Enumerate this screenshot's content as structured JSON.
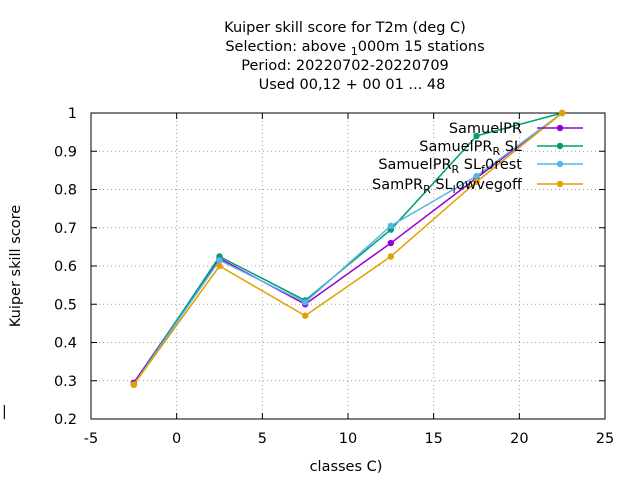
{
  "chart_data": {
    "type": "line",
    "title_lines": [
      "Kuiper skill score  for T2m (deg C)",
      "Selection: above 1000m      15 stations",
      "Period: 20220702-20220709",
      "Used  00,12  + 00 01 ... 48"
    ],
    "xlabel": "classes C)",
    "ylabel": "Kuiper skill score",
    "xlim": [
      -5,
      25
    ],
    "ylim": [
      0.2,
      1.0
    ],
    "xticks": [
      "-5",
      "0",
      "5",
      "10",
      "15",
      "20",
      "25"
    ],
    "yticks": [
      "0.2",
      "0.3",
      "0.4",
      "0.5",
      "0.6",
      "0.7",
      "0.8",
      "0.9",
      "1"
    ],
    "grid": true,
    "legend_position": "top-right",
    "x": [
      -2.5,
      2.5,
      7.5,
      12.5,
      17.5,
      22.5
    ],
    "series": [
      {
        "name": "SamuelPR",
        "color": "#9400d3",
        "values": [
          0.295,
          0.62,
          0.5,
          0.66,
          0.83,
          1.0
        ]
      },
      {
        "name": "SamuelPR_R SL",
        "color": "#009e73",
        "values": [
          0.29,
          0.625,
          0.51,
          0.695,
          0.94,
          1.0
        ]
      },
      {
        "name": "SamuelPR_R SL_f0rest",
        "color": "#56b4e9",
        "values": [
          0.29,
          0.615,
          0.505,
          0.705,
          0.835,
          1.0
        ]
      },
      {
        "name": "SamPR_R SL_lowvegoff",
        "color": "#e69f00",
        "values": [
          0.29,
          0.6,
          0.47,
          0.625,
          0.82,
          1.0
        ]
      }
    ]
  }
}
